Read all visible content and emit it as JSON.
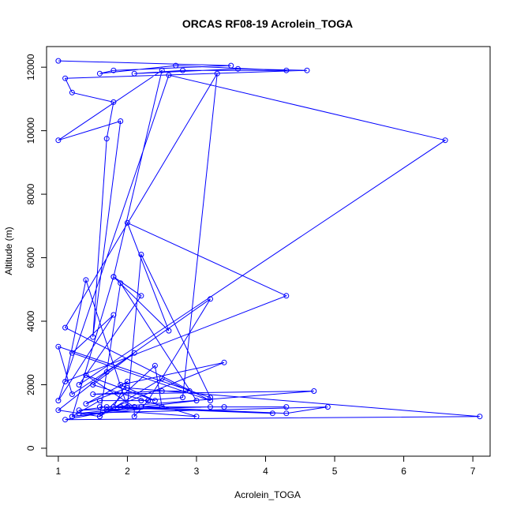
{
  "chart_data": {
    "type": "line",
    "title": "ORCAS RF08-19 Acrolein_TOGA",
    "xlabel": "Acrolein_TOGA",
    "ylabel": "Altitude (m)",
    "xlim": [
      0.83,
      7.25
    ],
    "ylim": [
      -250,
      12650
    ],
    "xticks": [
      1,
      2,
      3,
      4,
      5,
      6,
      7
    ],
    "yticks": [
      0,
      2000,
      4000,
      6000,
      8000,
      10000,
      12000
    ],
    "grid": false,
    "legend": "none",
    "series_color": "#0000ff",
    "x": [
      1.0,
      3.5,
      1.8,
      1.6,
      2.7,
      4.3,
      2.8,
      2.1,
      3.6,
      4.6,
      1.1,
      1.2,
      1.8,
      1.7,
      1.5,
      1.9,
      1.0,
      2.5,
      1.8,
      1.2,
      1.6,
      2.2,
      2.8,
      3.3,
      1.1,
      3.2,
      1.2,
      1.8,
      1.0,
      2.6,
      6.6,
      1.3,
      2.2,
      1.8,
      2.6,
      2.0,
      4.3,
      1.1,
      1.4,
      2.0,
      2.2,
      3.2,
      1.0,
      1.2,
      2.1,
      1.5,
      3.0,
      1.7,
      3.4,
      1.9,
      2.4,
      1.4,
      2.1,
      2.1,
      2.3,
      3.2,
      1.7,
      1.0,
      1.6,
      2.4,
      2.5,
      1.2,
      2.2,
      3.0,
      1.9,
      1.6,
      2.5,
      2.9,
      2.5,
      1.5,
      4.7,
      1.8,
      2.0,
      1.4,
      2.0,
      7.1,
      1.1,
      2.1,
      4.3,
      4.9,
      1.3,
      2.2,
      3.4,
      1.6,
      4.1,
      1.7,
      1.3,
      3.2,
      4.3,
      1.9,
      2.0
    ],
    "y": [
      12200,
      12050,
      11900,
      11800,
      12050,
      11900,
      11900,
      11800,
      11950,
      11900,
      11650,
      11200,
      10900,
      9750,
      3500,
      10300,
      9700,
      11900,
      5400,
      1000,
      1500,
      1500,
      1600,
      11800,
      3800,
      1500,
      3000,
      4200,
      1500,
      11750,
      9700,
      2000,
      4800,
      5400,
      3700,
      7100,
      4800,
      2100,
      5300,
      1300,
      6100,
      1600,
      3200,
      1700,
      3000,
      2000,
      1000,
      1200,
      2700,
      2000,
      1500,
      2300,
      1300,
      1000,
      1500,
      4700,
      2400,
      1200,
      1000,
      2600,
      1300,
      1000,
      1300,
      1500,
      5200,
      1000,
      2200,
      1800,
      1800,
      1700,
      1800,
      1300,
      2100,
      1400,
      1900,
      1000,
      900,
      1300,
      1100,
      1300,
      1100,
      1300,
      1300,
      1300,
      1100,
      1300,
      1200,
      1300,
      1300,
      1300,
      1300
    ]
  }
}
